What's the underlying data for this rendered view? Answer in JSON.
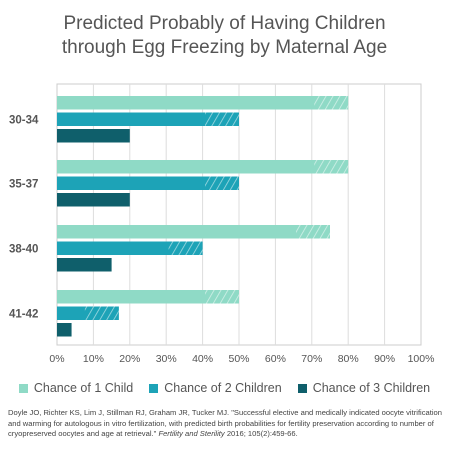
{
  "chart_data": {
    "type": "bar",
    "orientation": "horizontal",
    "title_lines": [
      "Predicted Probably of Having Children",
      "through Egg Freezing by Maternal Age"
    ],
    "categories": [
      "30-34",
      "35-37",
      "38-40",
      "41-42"
    ],
    "series": [
      {
        "name": "Chance of 1 Child",
        "color": "#8fdac6",
        "values": [
          80,
          80,
          75,
          50
        ]
      },
      {
        "name": "Chance of 2 Children",
        "color": "#1da3b7",
        "values": [
          50,
          50,
          40,
          17
        ]
      },
      {
        "name": "Chance of 3 Children",
        "color": "#0f5f6b",
        "values": [
          20,
          20,
          15,
          4
        ]
      }
    ],
    "xlim": [
      0,
      100
    ],
    "x_ticks": [
      "0%",
      "10%",
      "20%",
      "30%",
      "40%",
      "50%",
      "60%",
      "70%",
      "80%",
      "90%",
      "100%"
    ],
    "grid": "vertical",
    "legend_position": "bottom"
  },
  "citation": {
    "text": "Doyle JO, Richter KS, Lim J, Stillman RJ, Graham JR, Tucker MJ. \"Successful elective and medically indicated oocyte vitrification and warming for autologous in vitro fertilization, with predicted birth probabilities for fertility preservation according to number of cryopreserved oocytes and age at retrieval.\" ",
    "journal": "Fertility and Sterility",
    "details": " 2016; 105(2):459-66."
  }
}
